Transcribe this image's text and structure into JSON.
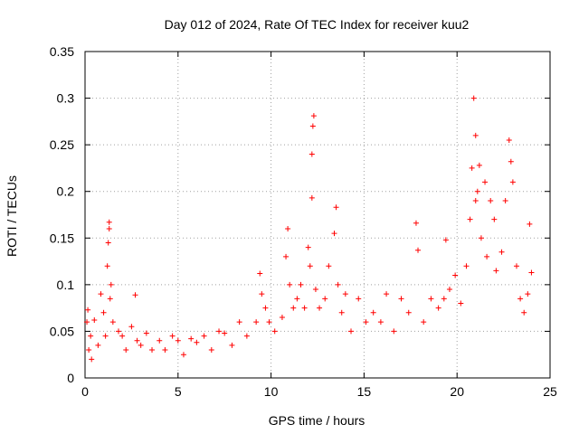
{
  "chart_data": {
    "type": "scatter",
    "title": "Day 012 of 2024, Rate Of TEC Index for receiver kuu2",
    "xlabel": "GPS time / hours",
    "ylabel": "ROTI / TECUs",
    "xlim": [
      0,
      25
    ],
    "ylim": [
      0,
      0.35
    ],
    "xticks": [
      "0",
      "5",
      "10",
      "15",
      "20",
      "25"
    ],
    "yticks": [
      "0",
      "0.05",
      "0.1",
      "0.15",
      "0.2",
      "0.25",
      "0.3",
      "0.35"
    ],
    "grid": true,
    "marker": "+",
    "color": "#ff0000",
    "series": [
      {
        "x": [
          0.1,
          0.15,
          0.2,
          0.3,
          0.35,
          0.5,
          0.7,
          0.85,
          1.0,
          1.1,
          1.2,
          1.25,
          1.3,
          1.3,
          1.35,
          1.4,
          1.5,
          1.8,
          2.0,
          2.2,
          2.5,
          2.7,
          2.8,
          3.0,
          3.3,
          3.6,
          4.0,
          4.3,
          4.7,
          5.0,
          5.3,
          5.7,
          6.0,
          6.4,
          6.8,
          7.2,
          7.5,
          7.9,
          8.3,
          8.7,
          9.2,
          9.4,
          9.5,
          9.7,
          9.9,
          10.2,
          10.6,
          10.8,
          10.9,
          11.0,
          11.2,
          11.4,
          11.6,
          11.8,
          12.0,
          12.1,
          12.2,
          12.2,
          12.25,
          12.3,
          12.4,
          12.6,
          12.9,
          13.1,
          13.4,
          13.5,
          13.6,
          13.8,
          14.0,
          14.3,
          14.7,
          15.1,
          15.5,
          15.9,
          16.2,
          16.6,
          17.0,
          17.4,
          17.8,
          17.9,
          18.2,
          18.6,
          19.0,
          19.3,
          19.4,
          19.6,
          19.9,
          20.2,
          20.5,
          20.7,
          20.8,
          20.9,
          21.0,
          21.0,
          21.1,
          21.2,
          21.3,
          21.5,
          21.6,
          21.8,
          22.0,
          22.1,
          22.4,
          22.6,
          22.8,
          22.9,
          23.0,
          23.2,
          23.4,
          23.6,
          23.8,
          23.9,
          24.0
        ],
        "y": [
          0.06,
          0.073,
          0.03,
          0.045,
          0.02,
          0.062,
          0.035,
          0.09,
          0.07,
          0.045,
          0.12,
          0.145,
          0.167,
          0.16,
          0.085,
          0.1,
          0.06,
          0.05,
          0.045,
          0.03,
          0.055,
          0.089,
          0.04,
          0.035,
          0.048,
          0.03,
          0.04,
          0.03,
          0.045,
          0.04,
          0.025,
          0.042,
          0.038,
          0.045,
          0.03,
          0.05,
          0.048,
          0.035,
          0.06,
          0.045,
          0.06,
          0.112,
          0.09,
          0.075,
          0.06,
          0.05,
          0.065,
          0.13,
          0.16,
          0.1,
          0.075,
          0.085,
          0.1,
          0.075,
          0.14,
          0.12,
          0.193,
          0.24,
          0.27,
          0.281,
          0.095,
          0.075,
          0.085,
          0.12,
          0.155,
          0.183,
          0.1,
          0.07,
          0.09,
          0.05,
          0.085,
          0.06,
          0.07,
          0.06,
          0.09,
          0.05,
          0.085,
          0.07,
          0.166,
          0.137,
          0.06,
          0.085,
          0.075,
          0.085,
          0.148,
          0.095,
          0.11,
          0.08,
          0.12,
          0.17,
          0.225,
          0.3,
          0.26,
          0.19,
          0.2,
          0.228,
          0.15,
          0.21,
          0.13,
          0.19,
          0.17,
          0.115,
          0.135,
          0.19,
          0.255,
          0.232,
          0.21,
          0.12,
          0.085,
          0.07,
          0.09,
          0.165,
          0.113
        ]
      }
    ]
  }
}
